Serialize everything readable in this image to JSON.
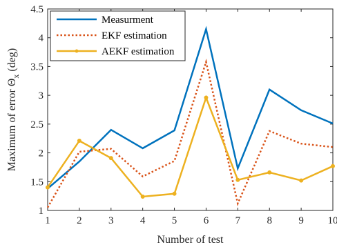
{
  "chart_data": {
    "type": "line",
    "x": [
      1,
      2,
      3,
      4,
      5,
      6,
      7,
      8,
      9,
      10
    ],
    "xlim": [
      1,
      10
    ],
    "ylim": [
      1,
      4.5
    ],
    "xticks": [
      "1",
      "2",
      "3",
      "4",
      "5",
      "6",
      "7",
      "8",
      "9",
      "10"
    ],
    "yticks": [
      "1",
      "1.5",
      "2",
      "2.5",
      "3",
      "3.5",
      "4",
      "4.5"
    ],
    "xlabel": "Number of test",
    "ylabel": "Maximum of error Θ",
    "ylabel_subscript": "x",
    "ylabel_unit": " (deg)",
    "grid": false,
    "legend_position": "top-left",
    "series": [
      {
        "name": "Measurment",
        "color": "#0072bd",
        "style": "solid",
        "marker": "none",
        "values": [
          1.38,
          1.85,
          2.4,
          2.08,
          2.39,
          4.15,
          1.73,
          3.1,
          2.74,
          2.51
        ]
      },
      {
        "name": "EKF estimation",
        "color": "#d95319",
        "style": "dotted",
        "marker": "none",
        "values": [
          1.05,
          2.02,
          2.07,
          1.59,
          1.86,
          3.58,
          1.12,
          2.38,
          2.16,
          2.1
        ]
      },
      {
        "name": "AEKF estimation",
        "color": "#edb120",
        "style": "solid",
        "marker": "dot",
        "values": [
          1.4,
          2.21,
          1.91,
          1.24,
          1.29,
          2.96,
          1.53,
          1.66,
          1.52,
          1.77
        ]
      }
    ]
  }
}
